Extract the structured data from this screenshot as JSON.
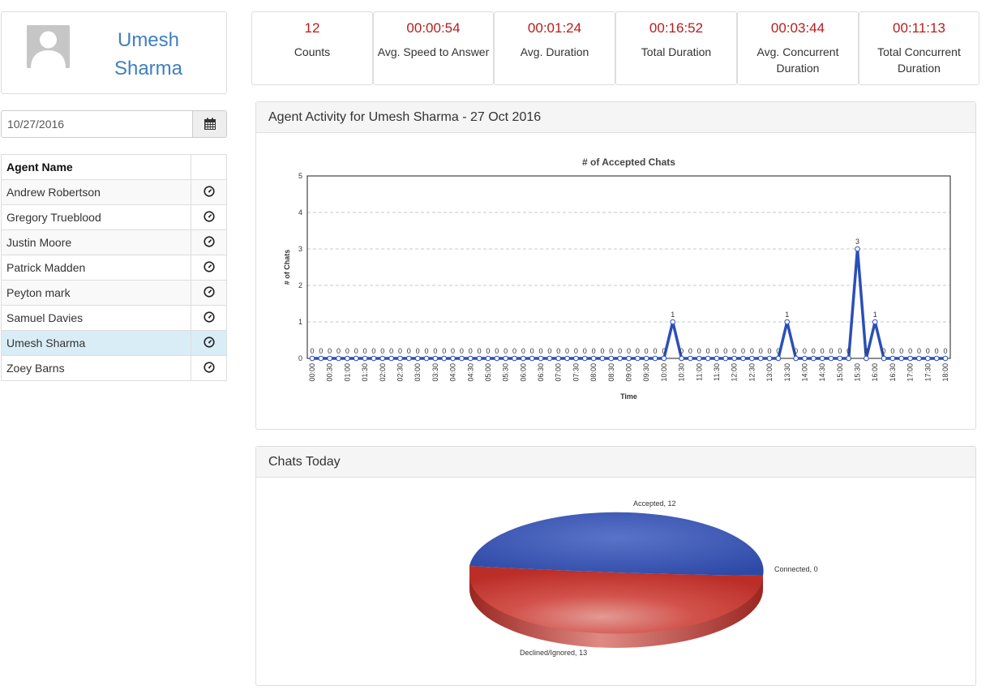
{
  "profile": {
    "name": "Umesh Sharma"
  },
  "date_picker": {
    "value": "10/27/2016"
  },
  "agents_table": {
    "header": "Agent Name",
    "rows": [
      {
        "name": "Andrew Robertson"
      },
      {
        "name": "Gregory Trueblood"
      },
      {
        "name": "Justin Moore"
      },
      {
        "name": "Patrick Madden"
      },
      {
        "name": "Peyton mark"
      },
      {
        "name": "Samuel Davies"
      },
      {
        "name": "Umesh Sharma",
        "selected": true
      },
      {
        "name": "Zoey Barns"
      }
    ]
  },
  "stats": [
    {
      "value": "12",
      "label": "Counts"
    },
    {
      "value": "00:00:54",
      "label": "Avg. Speed to Answer"
    },
    {
      "value": "00:01:24",
      "label": "Avg. Duration"
    },
    {
      "value": "00:16:52",
      "label": "Total Duration"
    },
    {
      "value": "00:03:44",
      "label": "Avg. Concurrent Duration"
    },
    {
      "value": "00:11:13",
      "label": "Total Concurrent Duration"
    }
  ],
  "activity_panel": {
    "title": "Agent Activity for Umesh Sharma - 27 Oct 2016"
  },
  "chats_panel": {
    "title": "Chats Today"
  },
  "colors": {
    "value_red": "#b91c1c",
    "line_blue": "#2b4fb8",
    "pie_blue": "#3553b0",
    "pie_red": "#c7342f",
    "selected_row": "#d9edf7",
    "name_blue": "#3f7fbf"
  },
  "chart_data": [
    {
      "type": "line",
      "title": "# of Accepted Chats",
      "xlabel": "Time",
      "ylabel": "# of Chats",
      "ylim": [
        0,
        5
      ],
      "yticks": [
        0,
        1,
        2,
        3,
        4,
        5
      ],
      "grid": true,
      "x_tick_labels": [
        "00:00",
        "00:30",
        "01:00",
        "01:30",
        "02:00",
        "02:30",
        "03:00",
        "03:30",
        "04:00",
        "04:30",
        "05:00",
        "05:30",
        "06:00",
        "06:30",
        "07:00",
        "07:30",
        "08:00",
        "08:30",
        "09:00",
        "09:30",
        "10:00",
        "10:30",
        "11:00",
        "11:30",
        "12:00",
        "12:30",
        "13:00",
        "13:30",
        "14:00",
        "14:30",
        "15:00",
        "15:30",
        "16:00",
        "16:30",
        "17:00",
        "17:30",
        "18:00"
      ],
      "series": [
        {
          "values": [
            0,
            0,
            0,
            0,
            0,
            0,
            0,
            0,
            0,
            0,
            0,
            0,
            0,
            0,
            0,
            0,
            0,
            0,
            0,
            0,
            0,
            0,
            0,
            0,
            0,
            0,
            0,
            0,
            0,
            0,
            0,
            0,
            0,
            0,
            0,
            0,
            0,
            0,
            0,
            0,
            0,
            1,
            0,
            0,
            0,
            0,
            0,
            0,
            0,
            0,
            0,
            0,
            0,
            0,
            1,
            0,
            0,
            0,
            0,
            0,
            0,
            0,
            3,
            0,
            1,
            0,
            0,
            0,
            0,
            0,
            0,
            0,
            0
          ]
        }
      ]
    },
    {
      "type": "pie",
      "slices": [
        {
          "label": "Accepted",
          "value": 12
        },
        {
          "label": "Connected",
          "value": 0
        },
        {
          "label": "Declined/Ignored",
          "value": 13
        }
      ]
    }
  ]
}
